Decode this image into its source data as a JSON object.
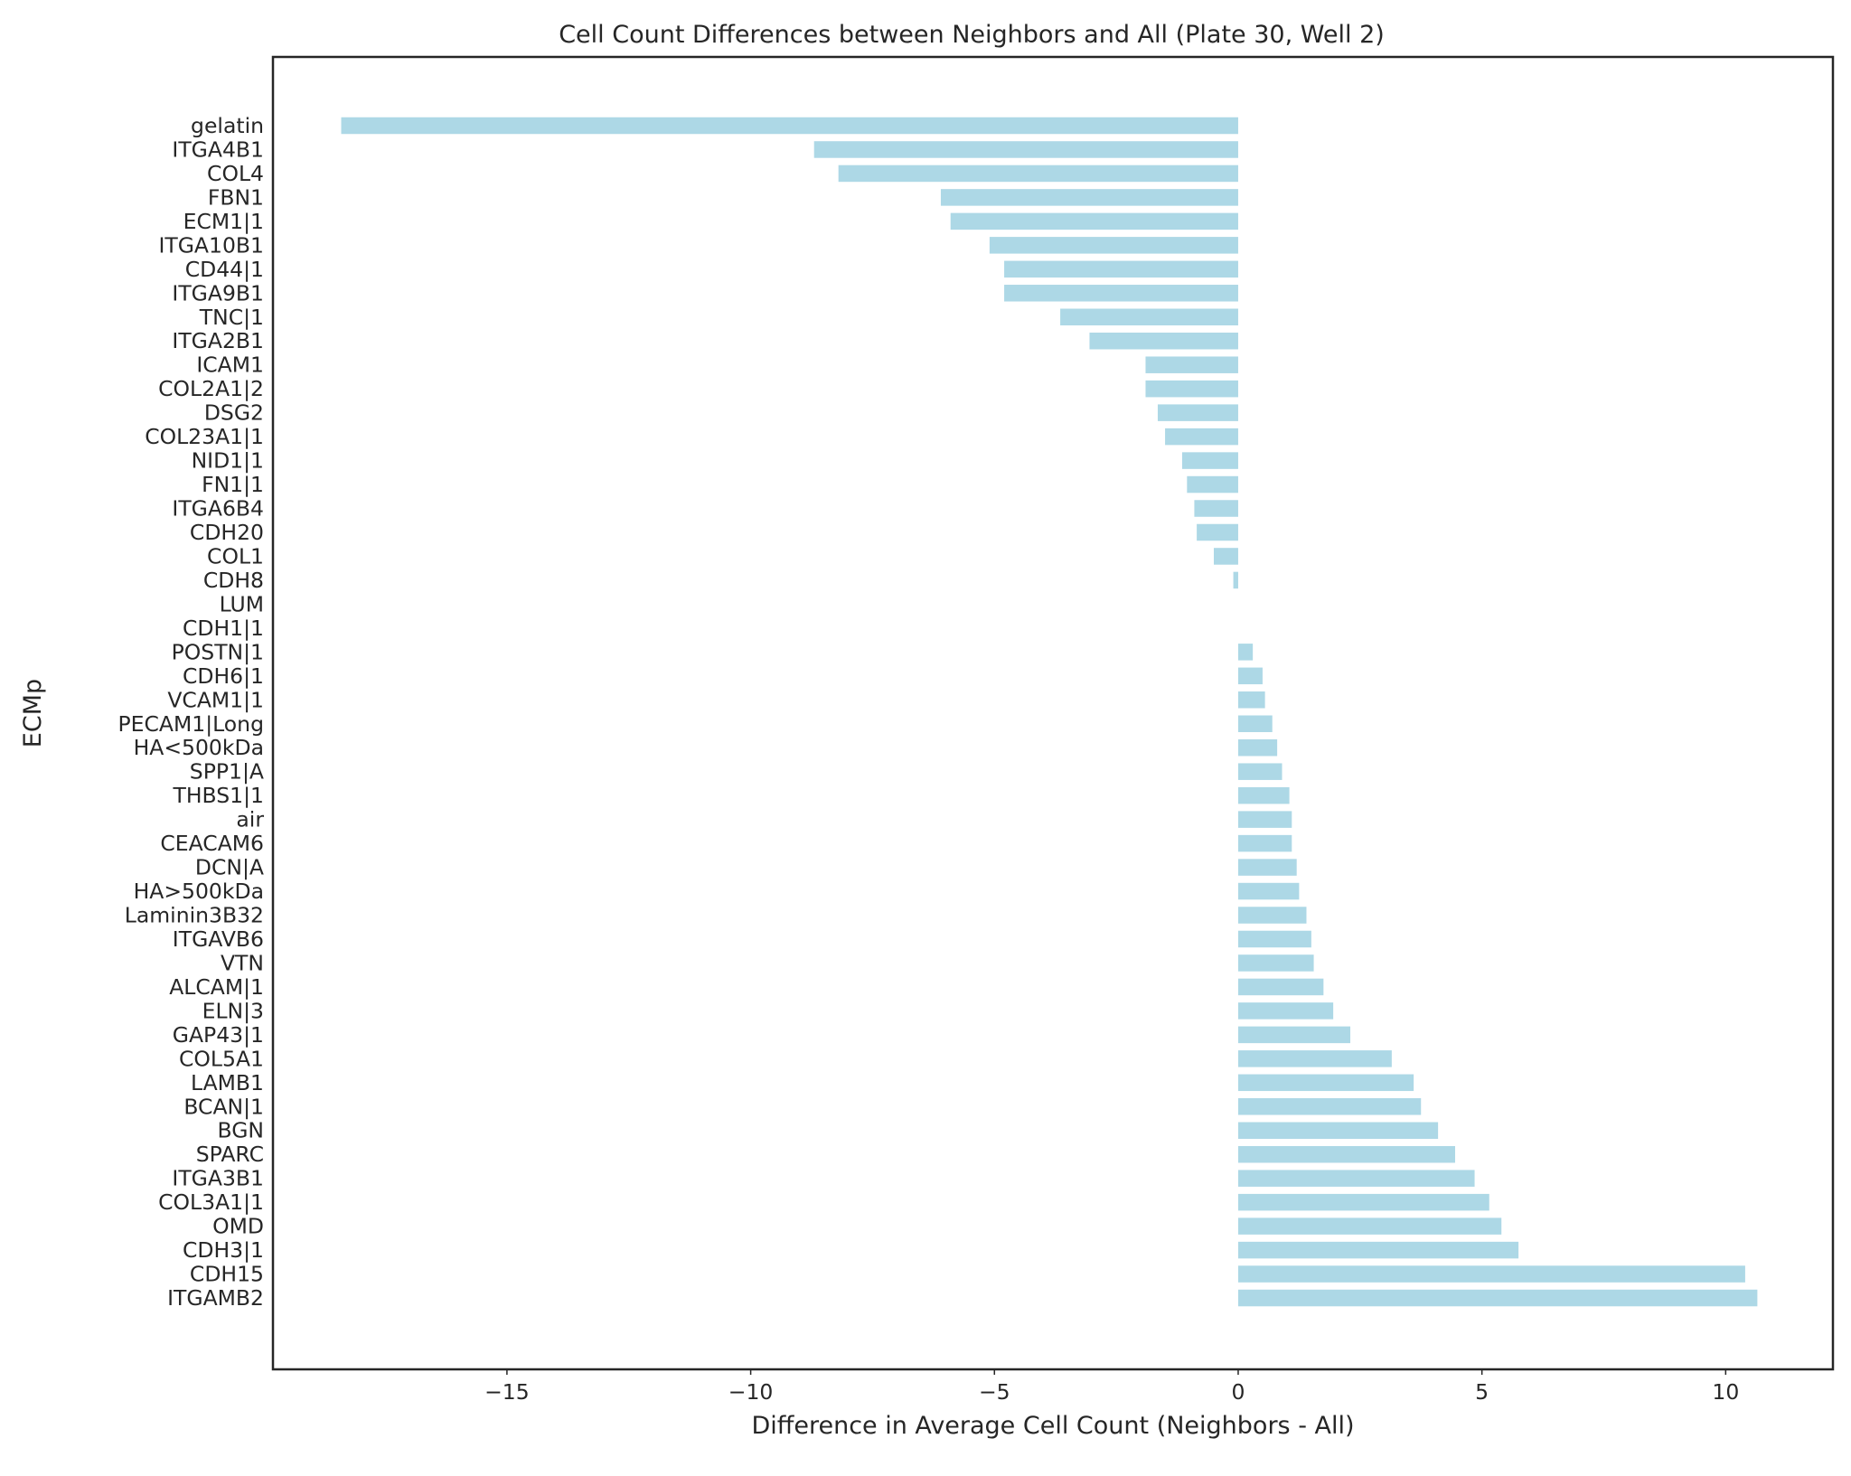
{
  "chart_data": {
    "type": "bar",
    "orientation": "horizontal",
    "title": "Cell Count Differences between Neighbors and All (Plate 30, Well 2)",
    "xlabel": "Difference in Average Cell Count (Neighbors - All)",
    "ylabel": "ECMp",
    "xlim": [
      -19.8,
      12.2
    ],
    "xticks": [
      -15,
      -10,
      -5,
      0,
      5,
      10
    ],
    "xtick_labels": [
      "−15",
      "−10",
      "−5",
      "0",
      "5",
      "10"
    ],
    "grid": false,
    "legend": "none",
    "bar_color": "#add8e6",
    "categories": [
      "gelatin",
      "ITGA4B1",
      "COL4",
      "FBN1",
      "ECM1|1",
      "ITGA10B1",
      "CD44|1",
      "ITGA9B1",
      "TNC|1",
      "ITGA2B1",
      "ICAM1",
      "COL2A1|2",
      "DSG2",
      "COL23A1|1",
      "NID1|1",
      "FN1|1",
      "ITGA6B4",
      "CDH20",
      "COL1",
      "CDH8",
      "LUM",
      "CDH1|1",
      "POSTN|1",
      "CDH6|1",
      "VCAM1|1",
      "PECAM1|Long",
      "HA<500kDa",
      "SPP1|A",
      "THBS1|1",
      "air",
      "CEACAM6",
      "DCN|A",
      "HA>500kDa",
      "Laminin3B32",
      "ITGAVB6",
      "VTN",
      "ALCAM|1",
      "ELN|3",
      "GAP43|1",
      "COL5A1",
      "LAMB1",
      "BCAN|1",
      "BGN",
      "SPARC",
      "ITGA3B1",
      "COL3A1|1",
      "OMD",
      "CDH3|1",
      "CDH15",
      "ITGAMB2"
    ],
    "values": [
      -18.4,
      -8.7,
      -8.2,
      -6.1,
      -5.9,
      -5.1,
      -4.8,
      -4.8,
      -3.65,
      -3.05,
      -1.9,
      -1.9,
      -1.65,
      -1.5,
      -1.15,
      -1.05,
      -0.9,
      -0.85,
      -0.5,
      -0.1,
      0.0,
      0.0,
      0.3,
      0.5,
      0.55,
      0.7,
      0.8,
      0.9,
      1.05,
      1.1,
      1.1,
      1.2,
      1.25,
      1.4,
      1.5,
      1.55,
      1.75,
      1.95,
      2.3,
      3.15,
      3.6,
      3.75,
      4.1,
      4.45,
      4.85,
      5.15,
      5.4,
      5.75,
      10.4,
      10.65
    ]
  }
}
